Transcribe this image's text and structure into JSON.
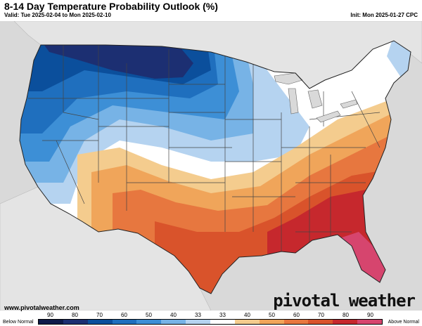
{
  "header": {
    "title": "8-14 Day Temperature Probability Outlook (%)",
    "valid": "Valid: Tue 2025-02-04 to Mon 2025-02-10",
    "init": "Init: Mon 2025-01-27 CPC"
  },
  "footer": {
    "website": "www.pivotalweather.com",
    "brand_left": "piv",
    "brand_right": "tal weather"
  },
  "legend": {
    "below_label": "Below Normal",
    "above_label": "Above Normal",
    "ticks": [
      "90",
      "80",
      "70",
      "60",
      "50",
      "40",
      "33",
      "33",
      "40",
      "50",
      "60",
      "70",
      "80",
      "90"
    ],
    "colors": [
      "#0d1a4a",
      "#1c2f72",
      "#0b4f9c",
      "#1f6fbe",
      "#3d8fd6",
      "#77b3e6",
      "#b5d3f0",
      "#ffffff",
      "#f4cc8e",
      "#f0a55a",
      "#e7773f",
      "#d9532b",
      "#c6282d",
      "#d6456e"
    ]
  },
  "map": {
    "regions": [
      {
        "name": "pacific-northwest",
        "category": "below",
        "probability": "80-90"
      },
      {
        "name": "northern-plains",
        "category": "below",
        "probability": "80-90"
      },
      {
        "name": "great-lakes",
        "category": "below",
        "probability": "33-50"
      },
      {
        "name": "new-england",
        "category": "near-normal"
      },
      {
        "name": "southwest",
        "category": "above",
        "probability": "40-50"
      },
      {
        "name": "texas",
        "category": "above",
        "probability": "50-60"
      },
      {
        "name": "southeast",
        "category": "above",
        "probability": "70-80"
      },
      {
        "name": "florida",
        "category": "above",
        "probability": "80-90"
      }
    ]
  }
}
